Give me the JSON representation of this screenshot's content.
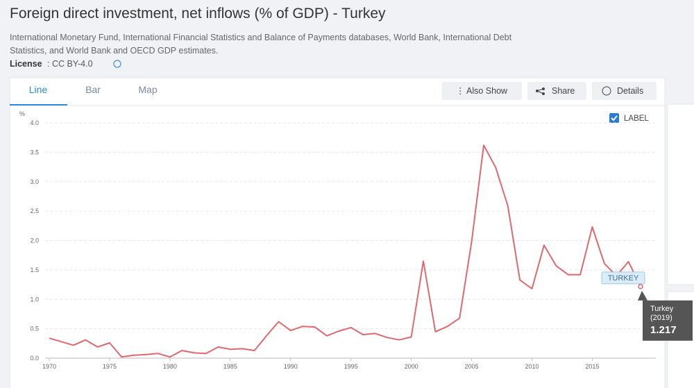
{
  "header": {
    "title": "Foreign direct investment, net inflows (% of GDP) - Turkey",
    "source_line1": "International Monetary Fund, International Financial Statistics and Balance of Payments databases, World Bank, International Debt",
    "source_line2": "Statistics, and World Bank and OECD GDP estimates.",
    "license_label": "License",
    "license_value": ": CC BY-4.0"
  },
  "tabs": [
    "Line",
    "Bar",
    "Map"
  ],
  "buttons": [
    "Also Show",
    "Share",
    "Details"
  ],
  "checkbox_label": "LABEL",
  "tooltip": {
    "name": "Turkey",
    "period": "(2019)"
  },
  "chart_data": {
    "type": "line",
    "y_label": "%",
    "x": [
      1970,
      1971,
      1972,
      1973,
      1974,
      1975,
      1976,
      1977,
      1978,
      1979,
      1980,
      1981,
      1982,
      1983,
      1984,
      1985,
      1986,
      1987,
      1988,
      1989,
      1990,
      1991,
      1992,
      1993,
      1994,
      1995,
      1996,
      1997,
      1998,
      1999,
      2000,
      2001,
      2002,
      2003,
      2004,
      2005,
      2006,
      2007,
      2008,
      2009,
      2010,
      2011,
      2012,
      2013,
      2014,
      2015,
      2016,
      2017,
      2018,
      2019
    ],
    "series": [
      {
        "name": "TURKEY",
        "color": "#e0676d",
        "values": [
          0.34,
          0.28,
          0.22,
          0.31,
          0.19,
          0.26,
          0.02,
          0.05,
          0.06,
          0.08,
          0.02,
          0.13,
          0.09,
          0.08,
          0.19,
          0.15,
          0.16,
          0.13,
          0.38,
          0.62,
          0.47,
          0.54,
          0.53,
          0.38,
          0.46,
          0.52,
          0.4,
          0.42,
          0.35,
          0.31,
          0.36,
          1.65,
          0.45,
          0.54,
          0.68,
          1.98,
          3.62,
          3.24,
          2.59,
          1.33,
          1.18,
          1.92,
          1.57,
          1.42,
          1.42,
          2.23,
          1.61,
          1.4,
          1.64,
          1.217
        ]
      }
    ],
    "xlim": [
      1970,
      2019
    ],
    "xticks": [
      1970,
      1975,
      1980,
      1985,
      1990,
      1995,
      2000,
      2005,
      2010,
      2015
    ],
    "ylim": [
      0,
      4
    ],
    "yticks": [
      {
        "value": 0,
        "label": "0.0"
      },
      {
        "value": 0.5,
        "label": "0.5"
      },
      {
        "value": 1,
        "label": "1.0"
      },
      {
        "value": 1.5,
        "label": "1.5"
      },
      {
        "value": 2,
        "label": "2.0"
      },
      {
        "value": 2.5,
        "label": "2.5"
      },
      {
        "value": 3,
        "label": "3.0"
      },
      {
        "value": 3.5,
        "label": "3.5"
      },
      {
        "value": 4,
        "label": "4.0"
      }
    ],
    "grid": true
  }
}
